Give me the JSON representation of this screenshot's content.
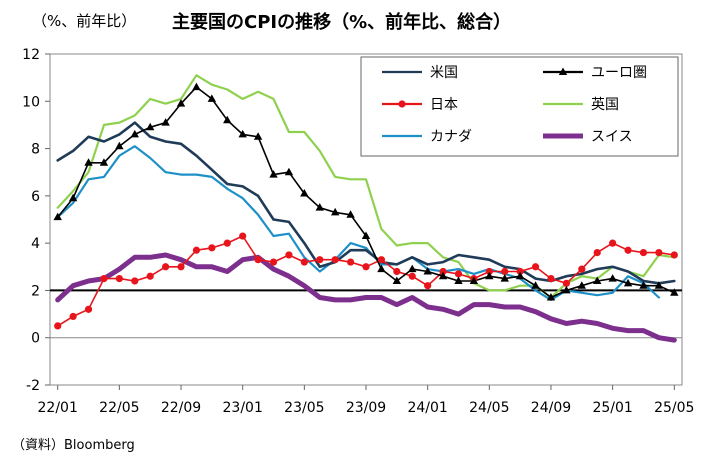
{
  "chart_data": {
    "type": "line",
    "title": "主要国のCPIの推移（%、前年比、総合）",
    "units_label": "（%、前年比）",
    "source": "（資料）Bloomberg",
    "ylim": [
      -2,
      12
    ],
    "yticks": [
      -2,
      0,
      2,
      4,
      6,
      8,
      10,
      12
    ],
    "reference_line": 2,
    "x": [
      "22/01",
      "22/02",
      "22/03",
      "22/04",
      "22/05",
      "22/06",
      "22/07",
      "22/08",
      "22/09",
      "22/10",
      "22/11",
      "22/12",
      "23/01",
      "23/02",
      "23/03",
      "23/04",
      "23/05",
      "23/06",
      "23/07",
      "23/08",
      "23/09",
      "23/10",
      "23/11",
      "23/12",
      "24/01",
      "24/02",
      "24/03",
      "24/04",
      "24/05",
      "24/06",
      "24/07",
      "24/08",
      "24/09",
      "24/10",
      "24/11",
      "24/12",
      "25/01",
      "25/02",
      "25/03",
      "25/04",
      "25/05"
    ],
    "xtick_labels": [
      "22/01",
      "22/05",
      "22/09",
      "23/01",
      "23/05",
      "23/09",
      "24/01",
      "24/05",
      "24/09",
      "25/01",
      "25/05"
    ],
    "series": [
      {
        "name": "米国",
        "color": "#1f3b57",
        "marker": "none",
        "values": [
          7.5,
          7.9,
          8.5,
          8.3,
          8.6,
          9.1,
          8.5,
          8.3,
          8.2,
          7.7,
          7.1,
          6.5,
          6.4,
          6.0,
          5.0,
          4.9,
          4.0,
          3.0,
          3.2,
          3.7,
          3.7,
          3.2,
          3.1,
          3.4,
          3.1,
          3.2,
          3.5,
          3.4,
          3.3,
          3.0,
          2.9,
          2.5,
          2.4,
          2.6,
          2.7,
          2.9,
          3.0,
          2.8,
          2.4,
          2.3,
          2.4
        ]
      },
      {
        "name": "ユーロ圏",
        "color": "#000000",
        "marker": "triangle",
        "values": [
          5.1,
          5.9,
          7.4,
          7.4,
          8.1,
          8.6,
          8.9,
          9.1,
          9.9,
          10.6,
          10.1,
          9.2,
          8.6,
          8.5,
          6.9,
          7.0,
          6.1,
          5.5,
          5.3,
          5.2,
          4.3,
          2.9,
          2.4,
          2.9,
          2.8,
          2.6,
          2.4,
          2.4,
          2.6,
          2.5,
          2.6,
          2.2,
          1.7,
          2.0,
          2.2,
          2.4,
          2.5,
          2.3,
          2.2,
          2.2,
          1.9
        ]
      },
      {
        "name": "日本",
        "color": "#e8141b",
        "marker": "circle",
        "values": [
          0.5,
          0.9,
          1.2,
          2.5,
          2.5,
          2.4,
          2.6,
          3.0,
          3.0,
          3.7,
          3.8,
          4.0,
          4.3,
          3.3,
          3.2,
          3.5,
          3.2,
          3.3,
          3.3,
          3.2,
          3.0,
          3.3,
          2.8,
          2.6,
          2.2,
          2.8,
          2.7,
          2.5,
          2.8,
          2.8,
          2.8,
          3.0,
          2.5,
          2.3,
          2.9,
          3.6,
          4.0,
          3.7,
          3.6,
          3.6,
          3.5
        ]
      },
      {
        "name": "英国",
        "color": "#8fd14f",
        "marker": "none",
        "values": [
          5.5,
          6.2,
          7.0,
          9.0,
          9.1,
          9.4,
          10.1,
          9.9,
          10.1,
          11.1,
          10.7,
          10.5,
          10.1,
          10.4,
          10.1,
          8.7,
          8.7,
          7.9,
          6.8,
          6.7,
          6.7,
          4.6,
          3.9,
          4.0,
          4.0,
          3.4,
          3.2,
          2.3,
          2.0,
          2.0,
          2.2,
          2.2,
          1.7,
          2.3,
          2.6,
          2.5,
          3.0,
          2.8,
          2.6,
          3.5,
          3.4
        ]
      },
      {
        "name": "カナダ",
        "color": "#1e90c8",
        "marker": "none",
        "values": [
          5.1,
          5.7,
          6.7,
          6.8,
          7.7,
          8.1,
          7.6,
          7.0,
          6.9,
          6.9,
          6.8,
          6.3,
          5.9,
          5.2,
          4.3,
          4.4,
          3.4,
          2.8,
          3.3,
          4.0,
          3.8,
          3.1,
          3.1,
          3.4,
          2.9,
          2.8,
          2.9,
          2.7,
          2.9,
          2.7,
          2.5,
          2.0,
          1.6,
          2.0,
          1.9,
          1.8,
          1.9,
          2.6,
          2.3,
          1.7,
          null
        ]
      },
      {
        "name": "スイス",
        "color": "#7d2f8e",
        "marker": "none",
        "values": [
          1.6,
          2.2,
          2.4,
          2.5,
          2.9,
          3.4,
          3.4,
          3.5,
          3.3,
          3.0,
          3.0,
          2.8,
          3.3,
          3.4,
          2.9,
          2.6,
          2.2,
          1.7,
          1.6,
          1.6,
          1.7,
          1.7,
          1.4,
          1.7,
          1.3,
          1.2,
          1.0,
          1.4,
          1.4,
          1.3,
          1.3,
          1.1,
          0.8,
          0.6,
          0.7,
          0.6,
          0.4,
          0.3,
          0.3,
          0.0,
          -0.1
        ]
      }
    ]
  }
}
